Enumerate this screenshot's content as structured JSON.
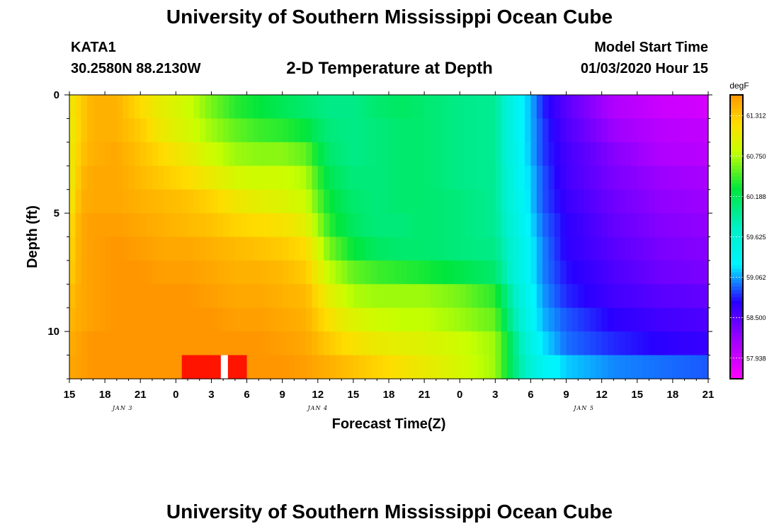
{
  "header": {
    "title": "University of Southern Mississippi Ocean Cube",
    "station": "KATA1",
    "coordinates": "30.2580N 88.2130W",
    "subtitle": "2-D Temperature at Depth",
    "model_start_label": "Model Start Time",
    "model_start_value": "01/03/2020 Hour 15"
  },
  "footer": {
    "title": "University of Southern Mississippi Ocean Cube"
  },
  "chart_data": {
    "type": "heatmap",
    "title": "2-D Temperature at Depth",
    "xlabel": "Forecast Time(Z)",
    "ylabel": "Depth (ft)",
    "x_hours_range": [
      0,
      54
    ],
    "x_tick_step_hours": 3,
    "x_tick_labels": [
      "15",
      "18",
      "21",
      "0",
      "3",
      "6",
      "9",
      "12",
      "15",
      "18",
      "21",
      "0",
      "3",
      "6",
      "9",
      "12",
      "15",
      "18",
      "21"
    ],
    "date_labels": [
      {
        "label": "JAN 3",
        "hour": 4.5
      },
      {
        "label": "JAN 4",
        "hour": 21
      },
      {
        "label": "JAN 5",
        "hour": 43.5
      }
    ],
    "y_range_ft": [
      0,
      12
    ],
    "y_ticks": [
      0,
      5,
      10
    ],
    "y_tick_labels": [
      "0",
      "5",
      "10"
    ],
    "y_minor_step": 1,
    "colorbar": {
      "unit": "degF",
      "min": 57.65,
      "max": 61.6,
      "ticks": [
        61.312,
        60.75,
        60.188,
        59.625,
        59.062,
        58.5,
        57.938
      ],
      "tick_labels": [
        "61.312",
        "60.750",
        "60.188",
        "59.625",
        "59.062",
        "58.500",
        "57.938"
      ]
    },
    "grid": false,
    "depth_levels_ft": [
      0.5,
      1.5,
      2.5,
      3.5,
      4.5,
      5.5,
      6.5,
      7.5,
      8.5,
      9.5,
      10.5,
      11.5
    ],
    "profiles": {
      "hour_columns": [
        0,
        1,
        2,
        4,
        6,
        8,
        10,
        12,
        14,
        16,
        18,
        20,
        21,
        22,
        24,
        26,
        28,
        30,
        33,
        36,
        37,
        38,
        39,
        40,
        42,
        46,
        50,
        54
      ],
      "temps_degF": [
        [
          61.05,
          61.3,
          61.45,
          61.45,
          61.2,
          61.0,
          60.85,
          60.6,
          60.4,
          60.3,
          60.2,
          60.1,
          60.05,
          60.0,
          60.0,
          60.1,
          60.15,
          60.1,
          60.0,
          59.95,
          59.6,
          59.3,
          59.1,
          58.8,
          58.5,
          58.1,
          57.95,
          57.9
        ],
        [
          61.0,
          61.3,
          61.45,
          61.45,
          61.3,
          61.05,
          60.9,
          60.7,
          60.55,
          60.45,
          60.4,
          60.3,
          60.15,
          60.05,
          60.0,
          60.05,
          60.1,
          60.1,
          60.0,
          59.95,
          59.6,
          59.3,
          59.1,
          58.85,
          58.55,
          58.2,
          58.05,
          58.0
        ],
        [
          61.0,
          61.35,
          61.45,
          61.5,
          61.35,
          61.2,
          61.05,
          60.85,
          60.7,
          60.65,
          60.65,
          60.55,
          60.3,
          60.1,
          60.0,
          60.05,
          60.1,
          60.1,
          60.0,
          59.95,
          59.6,
          59.35,
          59.1,
          58.85,
          58.6,
          58.3,
          58.1,
          58.05
        ],
        [
          61.0,
          61.4,
          61.5,
          61.5,
          61.4,
          61.3,
          61.2,
          61.05,
          60.9,
          60.85,
          60.85,
          60.75,
          60.45,
          60.2,
          60.05,
          60.05,
          60.1,
          60.1,
          60.0,
          59.95,
          59.65,
          59.35,
          59.15,
          58.9,
          58.6,
          58.35,
          58.2,
          58.15
        ],
        [
          61.05,
          61.45,
          61.5,
          61.5,
          61.45,
          61.4,
          61.35,
          61.25,
          61.1,
          61.0,
          60.95,
          60.85,
          60.55,
          60.3,
          60.1,
          60.05,
          60.1,
          60.1,
          60.05,
          59.95,
          59.65,
          59.4,
          59.15,
          58.9,
          58.65,
          58.4,
          58.25,
          58.2
        ],
        [
          61.15,
          61.5,
          61.55,
          61.55,
          61.5,
          61.45,
          61.4,
          61.35,
          61.25,
          61.2,
          61.15,
          61.0,
          60.7,
          60.4,
          60.15,
          60.05,
          60.05,
          60.1,
          60.05,
          59.95,
          59.7,
          59.45,
          59.2,
          58.95,
          58.7,
          58.45,
          58.3,
          58.25
        ],
        [
          61.2,
          61.5,
          61.55,
          61.6,
          61.55,
          61.5,
          61.5,
          61.45,
          61.4,
          61.35,
          61.3,
          61.2,
          60.9,
          60.6,
          60.3,
          60.15,
          60.1,
          60.1,
          60.05,
          60.0,
          59.75,
          59.5,
          59.25,
          59.0,
          58.7,
          58.5,
          58.35,
          58.3
        ],
        [
          61.25,
          61.5,
          61.55,
          61.6,
          61.6,
          61.55,
          61.55,
          61.5,
          61.45,
          61.45,
          61.4,
          61.3,
          61.05,
          60.8,
          60.55,
          60.45,
          60.4,
          60.35,
          60.25,
          60.1,
          59.8,
          59.5,
          59.25,
          59.0,
          58.75,
          58.55,
          58.4,
          58.35
        ],
        [
          61.35,
          61.5,
          61.55,
          61.6,
          61.6,
          61.6,
          61.6,
          61.55,
          61.5,
          61.5,
          61.45,
          61.4,
          61.2,
          61.0,
          60.75,
          60.7,
          60.7,
          60.7,
          60.6,
          60.4,
          60.0,
          59.6,
          59.3,
          59.05,
          58.8,
          58.6,
          58.5,
          58.45
        ],
        [
          61.4,
          61.5,
          61.55,
          61.6,
          61.6,
          61.6,
          61.6,
          61.6,
          61.55,
          61.55,
          61.5,
          61.45,
          61.3,
          61.15,
          60.95,
          60.85,
          60.8,
          60.8,
          60.7,
          60.55,
          60.1,
          59.7,
          59.35,
          59.1,
          58.9,
          58.7,
          58.6,
          58.55
        ],
        [
          61.45,
          61.55,
          61.6,
          61.6,
          61.6,
          61.6,
          61.6,
          61.6,
          61.6,
          61.6,
          61.55,
          61.5,
          61.4,
          61.3,
          61.15,
          61.05,
          61.0,
          60.95,
          60.85,
          60.7,
          60.3,
          59.85,
          59.5,
          59.2,
          58.95,
          58.8,
          58.7,
          58.65
        ],
        [
          61.5,
          61.55,
          61.6,
          61.6,
          61.6,
          61.65,
          61.65,
          61.65,
          61.6,
          61.6,
          61.6,
          61.55,
          61.5,
          61.45,
          61.35,
          61.25,
          61.15,
          61.05,
          60.9,
          60.7,
          60.3,
          59.9,
          59.6,
          59.35,
          59.15,
          59.0,
          58.95,
          58.9
        ]
      ]
    },
    "bottom_row_hot_spot": {
      "start_hour": 9.5,
      "end_hour": 15,
      "temp_degF": 61.9,
      "note": "above colorbar max, rendered red"
    },
    "missing_cell": {
      "start_hour": 12.8,
      "end_hour": 13.4,
      "depth_ft": 11.5
    }
  }
}
